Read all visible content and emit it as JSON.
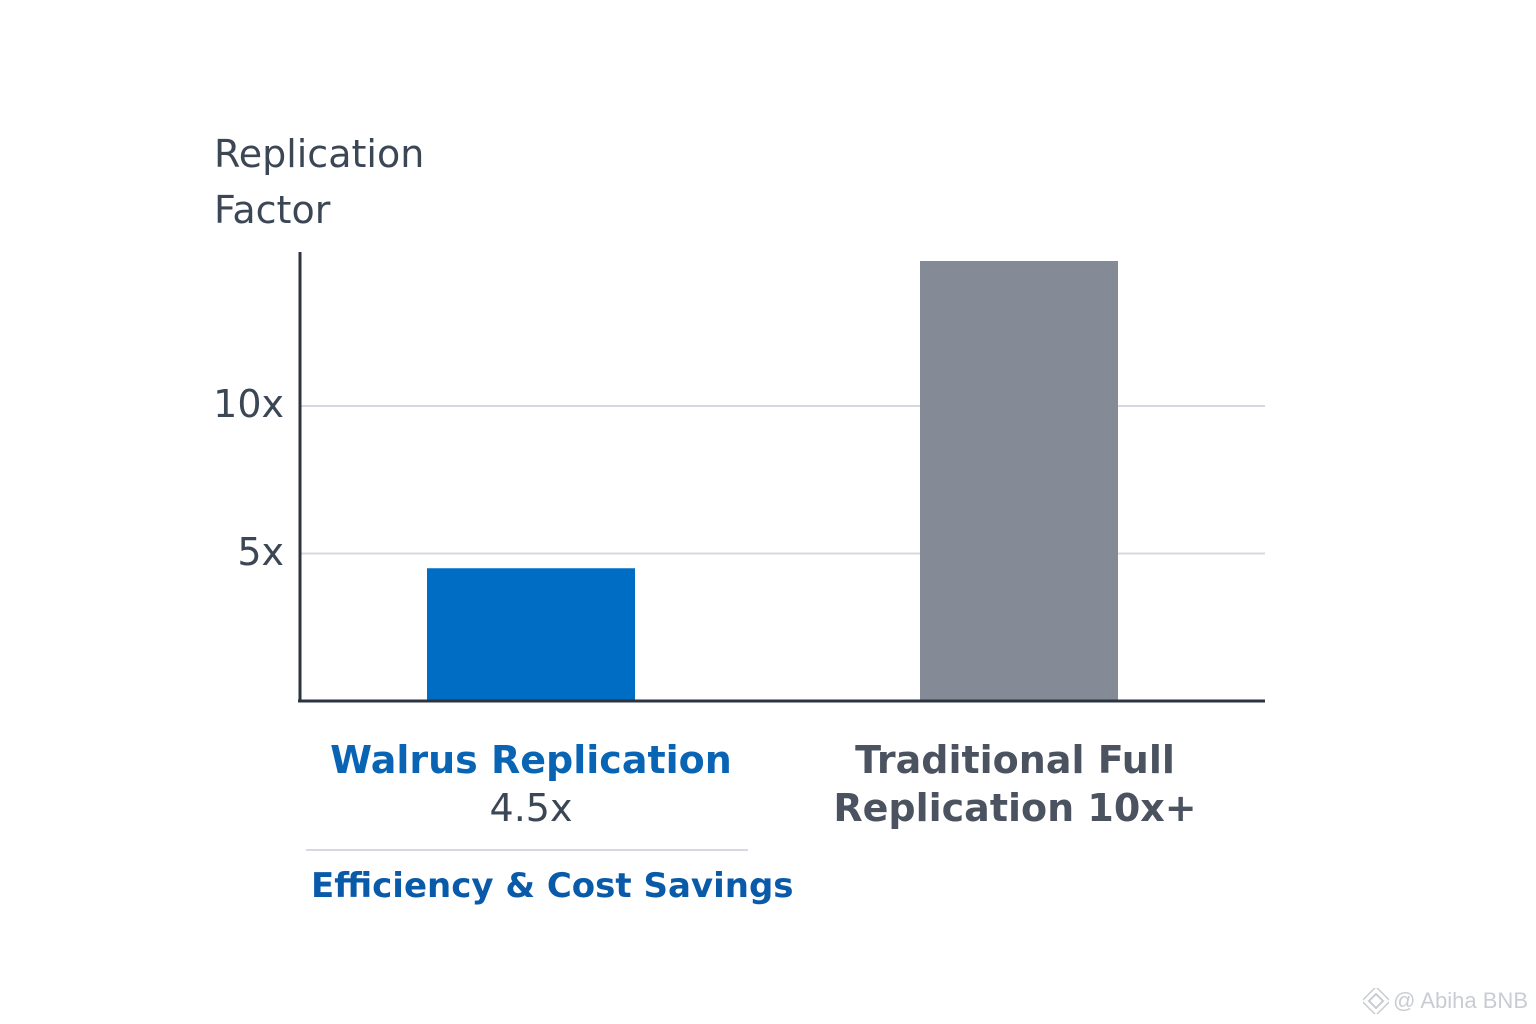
{
  "chart_data": {
    "type": "bar",
    "ylabel_lines": [
      "Replication",
      "Factor"
    ],
    "categories": [
      "Walrus Replication",
      "Traditional Full Replication 10x+"
    ],
    "values": [
      4.5,
      10
    ],
    "ylim": [
      0,
      13
    ],
    "yticks": [
      5,
      10
    ],
    "ytick_labels": [
      "5x",
      "10x"
    ],
    "grid": true,
    "bars": [
      {
        "label": "Walrus Replication",
        "sublabel": "4.5x",
        "value": 4.5,
        "color": "#006dc4",
        "label_color": "#0a64b4"
      },
      {
        "label_lines": [
          "Traditional Full",
          "Replication 10x+"
        ],
        "value": 10,
        "color": "#858b96",
        "label_color": "#4b5360"
      }
    ],
    "annotation": "Efficiency & Cost Savings",
    "annotation_color": "#0a5aaa"
  },
  "watermark": {
    "text": "@ Abiha BNB",
    "icon": "binance-diamond-icon"
  },
  "colors": {
    "axis": "#2b3440",
    "grid": "#d5d8e0",
    "text": "#3c4756"
  }
}
